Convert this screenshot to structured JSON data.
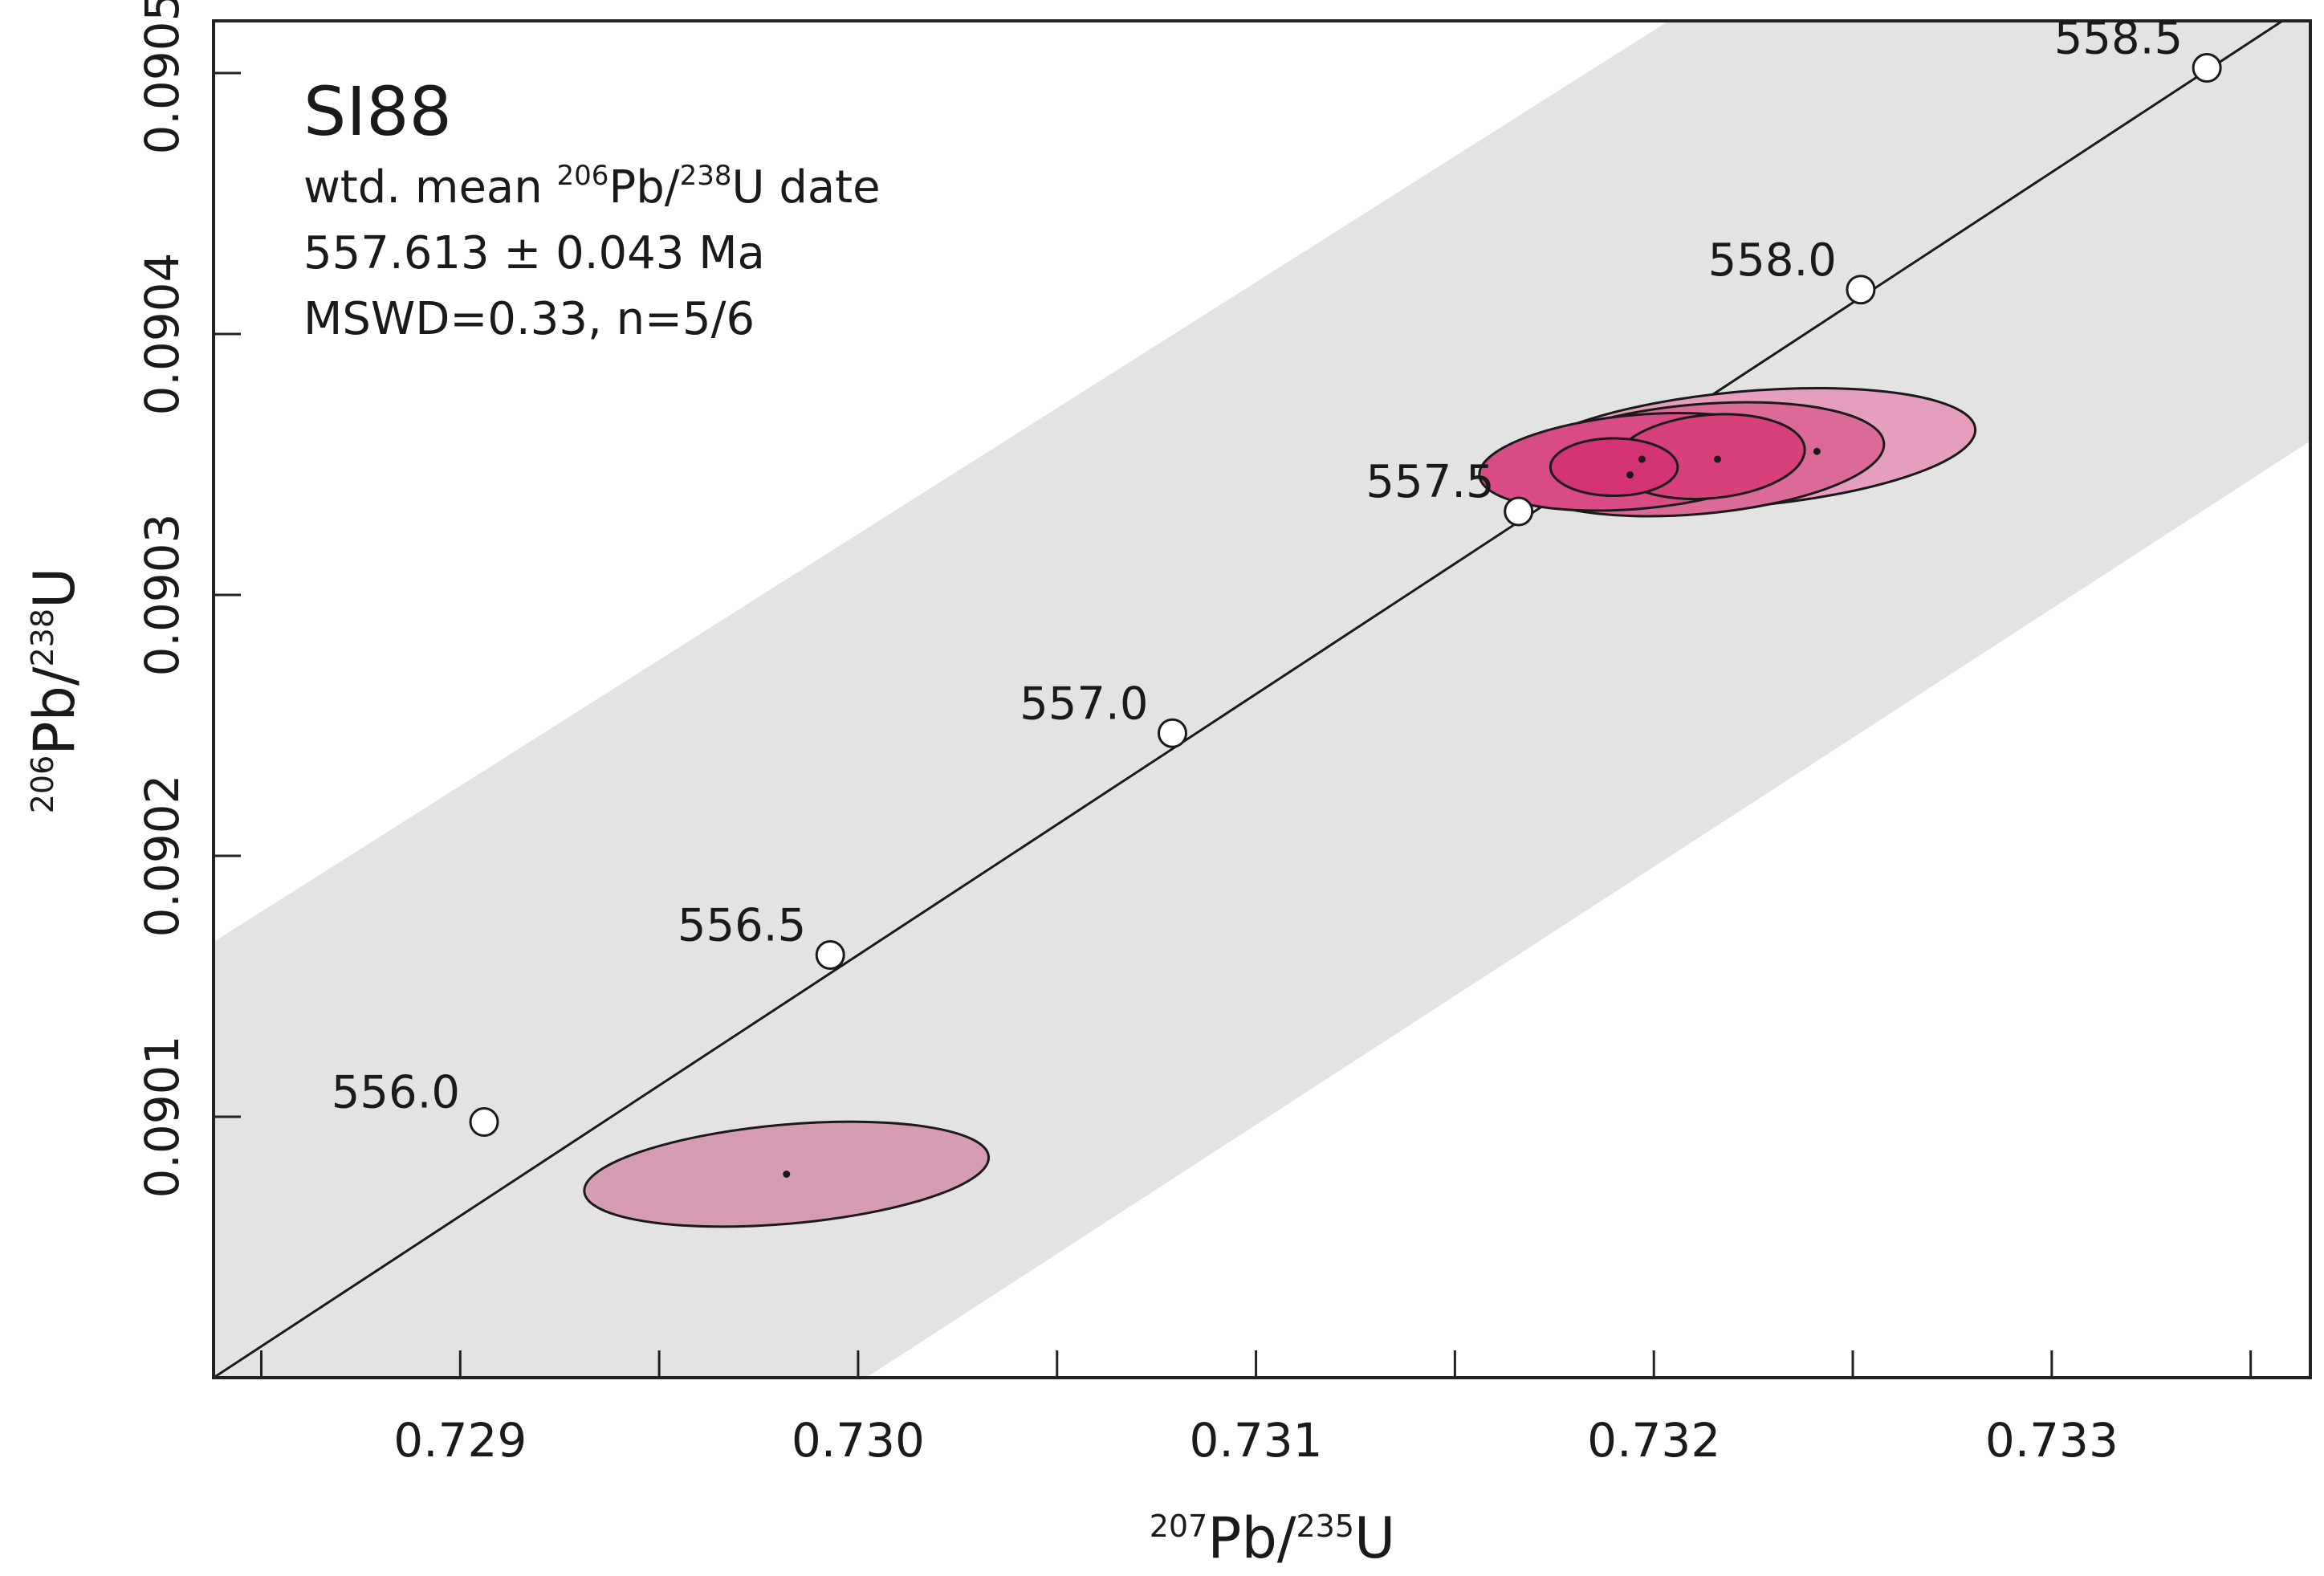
{
  "chart_data": {
    "type": "scatter",
    "subtype": "U-Pb concordia diagram",
    "title": "SI88",
    "xlabel": {
      "sup": "207",
      "main": "Pb/",
      "sup2": "235",
      "main2": "U"
    },
    "ylabel": {
      "sup": "206",
      "main": "Pb/",
      "sup2": "238",
      "main2": "U"
    },
    "xlim": [
      0.72838,
      0.73365
    ],
    "ylim": [
      0.09,
      0.09052
    ],
    "x_ticks": [
      "0.729",
      "0.730",
      "0.731",
      "0.732",
      "0.733"
    ],
    "x_tick_values": [
      0.729,
      0.73,
      0.731,
      0.732,
      0.733
    ],
    "x_minor_ticks": [
      0.7285,
      0.7295,
      0.7305,
      0.7315,
      0.7325,
      0.7335
    ],
    "y_ticks": [
      "0.0901",
      "0.0902",
      "0.0903",
      "0.0904",
      "0.0905"
    ],
    "y_tick_values": [
      0.0901,
      0.0902,
      0.0903,
      0.0904,
      0.0905
    ],
    "annotation": {
      "line1": {
        "pre": "wtd. mean ",
        "sup1": "206",
        "mid": "Pb/",
        "sup2": "238",
        "post": "U date"
      },
      "line2": "557.613 ± 0.043 Ma",
      "line3": "MSWD=0.33, n=5/6"
    },
    "concordia_markers": [
      {
        "label": "556.0",
        "x": 0.72906,
        "y": 0.090098
      },
      {
        "label": "556.5",
        "x": 0.72993,
        "y": 0.090162
      },
      {
        "label": "557.0",
        "x": 0.73079,
        "y": 0.090247
      },
      {
        "label": "557.5",
        "x": 0.73166,
        "y": 0.090332
      },
      {
        "label": "558.0",
        "x": 0.73252,
        "y": 0.090417
      },
      {
        "label": "558.5",
        "x": 0.73339,
        "y": 0.090502
      }
    ],
    "concordia_line": {
      "x1": 0.72838,
      "y1": 0.09,
      "x2": 0.73365,
      "y2": 0.090527
    },
    "uncertainty_band": [
      {
        "x": 0.72838,
        "y": 0.090167
      },
      {
        "x": 0.73211,
        "y": 0.090527
      },
      {
        "x": 0.73365,
        "y": 0.090527
      },
      {
        "x": 0.73365,
        "y": 0.090359
      },
      {
        "x": 0.73002,
        "y": 0.09
      },
      {
        "x": 0.72838,
        "y": 0.09
      }
    ],
    "ellipses": [
      {
        "name": "excluded",
        "cx": 0.72982,
        "cy": 0.090078,
        "rx": 0.00051,
        "ry": 1.9e-05,
        "angle": -5,
        "fill": "#d69cb4",
        "included": false
      },
      {
        "name": "z1",
        "cx": 0.73223,
        "cy": 0.090356,
        "rx": 0.00058,
        "ry": 2.2e-05,
        "angle": -5,
        "fill": "#e59ebd",
        "included": true
      },
      {
        "name": "z2",
        "cx": 0.73211,
        "cy": 0.090352,
        "rx": 0.00047,
        "ry": 2.1e-05,
        "angle": -5,
        "fill": "#dc6a98",
        "included": true
      },
      {
        "name": "z3",
        "cx": 0.73196,
        "cy": 0.090351,
        "rx": 0.0004,
        "ry": 1.8e-05,
        "angle": -5,
        "fill": "#d94b84",
        "included": true
      },
      {
        "name": "z4",
        "cx": 0.73214,
        "cy": 0.090353,
        "rx": 0.00024,
        "ry": 1.6e-05,
        "angle": -5,
        "fill": "#d8407b",
        "included": true
      },
      {
        "name": "z5",
        "cx": 0.7319,
        "cy": 0.090349,
        "rx": 0.00016,
        "ry": 1.1e-05,
        "angle": 0,
        "fill": "#d33374",
        "included": true
      }
    ],
    "centers": [
      {
        "x": 0.72982,
        "y": 0.090078
      },
      {
        "x": 0.73197,
        "y": 0.090352
      },
      {
        "x": 0.73216,
        "y": 0.090352
      },
      {
        "x": 0.73241,
        "y": 0.090355
      },
      {
        "x": 0.73194,
        "y": 0.090346
      }
    ],
    "colors": {
      "title": "#9b1d52",
      "band": "#e3e3e3",
      "line": "#1a1a1a",
      "marker_fill": "#ffffff"
    }
  }
}
